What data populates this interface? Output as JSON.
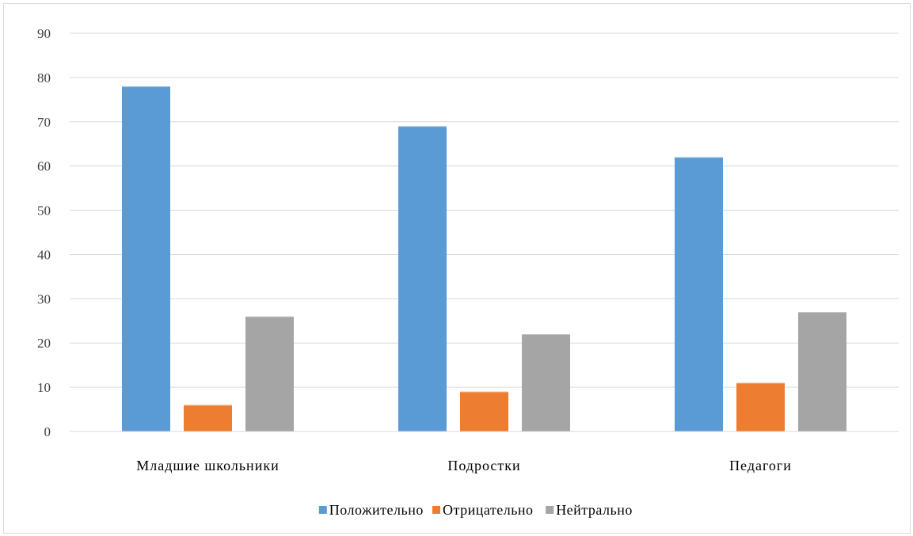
{
  "chart_data": {
    "type": "bar",
    "title": "",
    "xlabel": "",
    "ylabel": "",
    "categories": [
      "Младшие школьники",
      "Подростки",
      "Педагоги"
    ],
    "series": [
      {
        "name": "Положительно",
        "values": [
          78,
          69,
          62
        ],
        "color": "#5b9bd5"
      },
      {
        "name": "Отрицательно",
        "values": [
          6,
          9,
          11
        ],
        "color": "#ed7d31"
      },
      {
        "name": "Нейтрально",
        "values": [
          26,
          22,
          27
        ],
        "color": "#a5a5a5"
      }
    ],
    "ylim": [
      0,
      90
    ],
    "yticks": [
      0,
      10,
      20,
      30,
      40,
      50,
      60,
      70,
      80,
      90
    ],
    "grid": true,
    "legend_position": "bottom",
    "gridline_color": "#d9d9d9"
  }
}
